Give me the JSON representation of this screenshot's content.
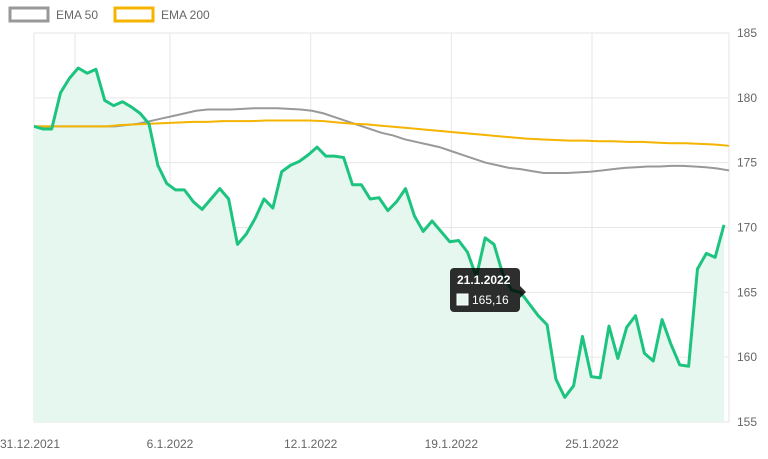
{
  "chart_data": {
    "type": "line",
    "x_ticks": [
      "31.12.2021",
      "6.1.2022",
      "12.1.2022",
      "19.1.2022",
      "25.1.2022"
    ],
    "x_tick_index": [
      0,
      6,
      12,
      18,
      24
    ],
    "ylim": [
      155,
      185
    ],
    "y_ticks": [
      155,
      160,
      165,
      170,
      175,
      180,
      185
    ],
    "y_axis_position": "right",
    "grid": true,
    "legend_position": "top-left",
    "series": [
      {
        "name": "EMA 50",
        "color": "#999999",
        "values": [
          177.8,
          177.8,
          177.8,
          177.8,
          177.8,
          177.8,
          177.8,
          177.8,
          177.9,
          178.0,
          178.2,
          178.4,
          178.6,
          178.8,
          179.0,
          179.1,
          179.1,
          179.1,
          179.15,
          179.2,
          179.2,
          179.2,
          179.15,
          179.1,
          179.0,
          178.8,
          178.5,
          178.2,
          177.9,
          177.6,
          177.3,
          177.1,
          176.8,
          176.6,
          176.4,
          176.2,
          175.9,
          175.6,
          175.3,
          175.0,
          174.8,
          174.6,
          174.5,
          174.35,
          174.2,
          174.2,
          174.2,
          174.25,
          174.3,
          174.4,
          174.5,
          174.6,
          174.65,
          174.7,
          174.7,
          174.75,
          174.75,
          174.7,
          174.65,
          174.55,
          174.4
        ]
      },
      {
        "name": "EMA 200",
        "color": "#F5B400",
        "values": [
          177.8,
          177.8,
          177.8,
          177.8,
          177.8,
          177.8,
          177.9,
          177.95,
          178.0,
          178.05,
          178.1,
          178.15,
          178.15,
          178.2,
          178.2,
          178.2,
          178.25,
          178.25,
          178.25,
          178.25,
          178.2,
          178.1,
          178.0,
          177.95,
          177.85,
          177.75,
          177.65,
          177.55,
          177.45,
          177.35,
          177.25,
          177.15,
          177.05,
          176.95,
          176.85,
          176.8,
          176.75,
          176.7,
          176.7,
          176.65,
          176.65,
          176.6,
          176.6,
          176.55,
          176.5,
          176.5,
          176.45,
          176.4,
          176.3
        ]
      },
      {
        "name": "",
        "color": "#1DC47F",
        "fill": "#E6F7EF",
        "values": [
          177.8,
          177.6,
          177.6,
          180.4,
          181.5,
          182.3,
          181.9,
          182.2,
          179.8,
          179.4,
          179.7,
          179.3,
          178.8,
          178.0,
          174.8,
          173.4,
          172.9,
          172.9,
          172.0,
          171.4,
          172.2,
          173.0,
          172.2,
          168.7,
          169.5,
          170.7,
          172.2,
          171.5,
          174.3,
          174.8,
          175.1,
          175.6,
          176.2,
          175.5,
          175.5,
          175.4,
          173.3,
          173.3,
          172.2,
          172.3,
          171.3,
          172.0,
          173.0,
          170.9,
          169.7,
          170.5,
          169.7,
          168.9,
          169.0,
          168.1,
          166.2,
          169.2,
          168.7,
          166.4,
          165.16,
          165.0,
          164.1,
          163.2,
          162.5,
          158.3,
          156.9,
          157.8,
          161.6,
          158.5,
          158.4,
          162.4,
          159.9,
          162.3,
          163.2,
          160.3,
          159.7,
          162.9,
          161.0,
          159.4,
          159.3,
          166.8,
          168.0,
          167.7,
          170.2
        ]
      }
    ],
    "tooltip": {
      "date": "21.1.2022",
      "value": "165,16",
      "point_index": 54
    }
  }
}
